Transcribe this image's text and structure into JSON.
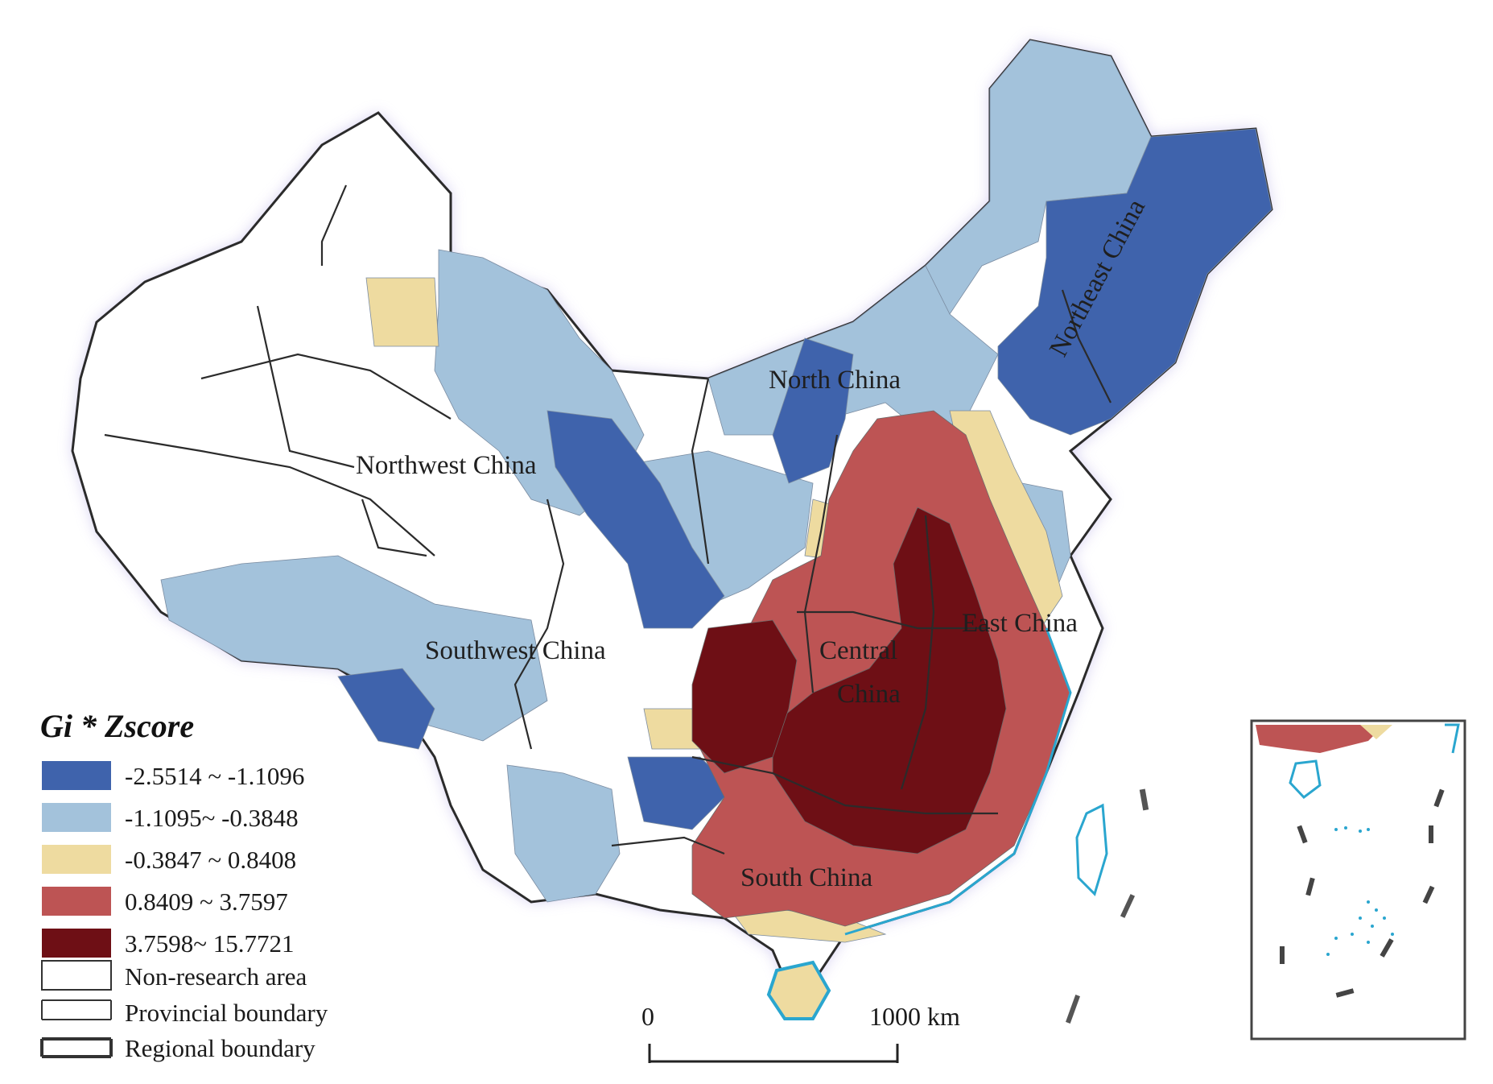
{
  "map": {
    "legend": {
      "title": "Gi * Zscore",
      "classes": [
        {
          "label": "-2.5514 ~ -1.1096",
          "color": "#3f63ac"
        },
        {
          "label": "-1.1095~ -0.3848",
          "color": "#a3c2db"
        },
        {
          "label": "-0.3847 ~ 0.8408",
          "color": "#eedba0"
        },
        {
          "label": "0.8409 ~ 3.7597",
          "color": "#bd5454"
        },
        {
          "label": "3.7598~ 15.7721",
          "color": "#6e0f15"
        }
      ],
      "symbols": [
        {
          "label": "Non-research area"
        },
        {
          "label": "Provincial boundary"
        },
        {
          "label": "Regional boundary"
        }
      ]
    },
    "region_labels": {
      "northeast": "Northeast China",
      "north": "North China",
      "northwest": "Northwest China",
      "southwest": "Southwest China",
      "central_line1": "Central",
      "central_line2": "China",
      "east": "East China",
      "south": "South China"
    },
    "scale_bar": {
      "start_label": "0",
      "end_label": "1000 km"
    },
    "colors": {
      "outline": "#2b2b2b",
      "halo": "#cfc8ef",
      "coast": "#2aa6cf"
    }
  }
}
